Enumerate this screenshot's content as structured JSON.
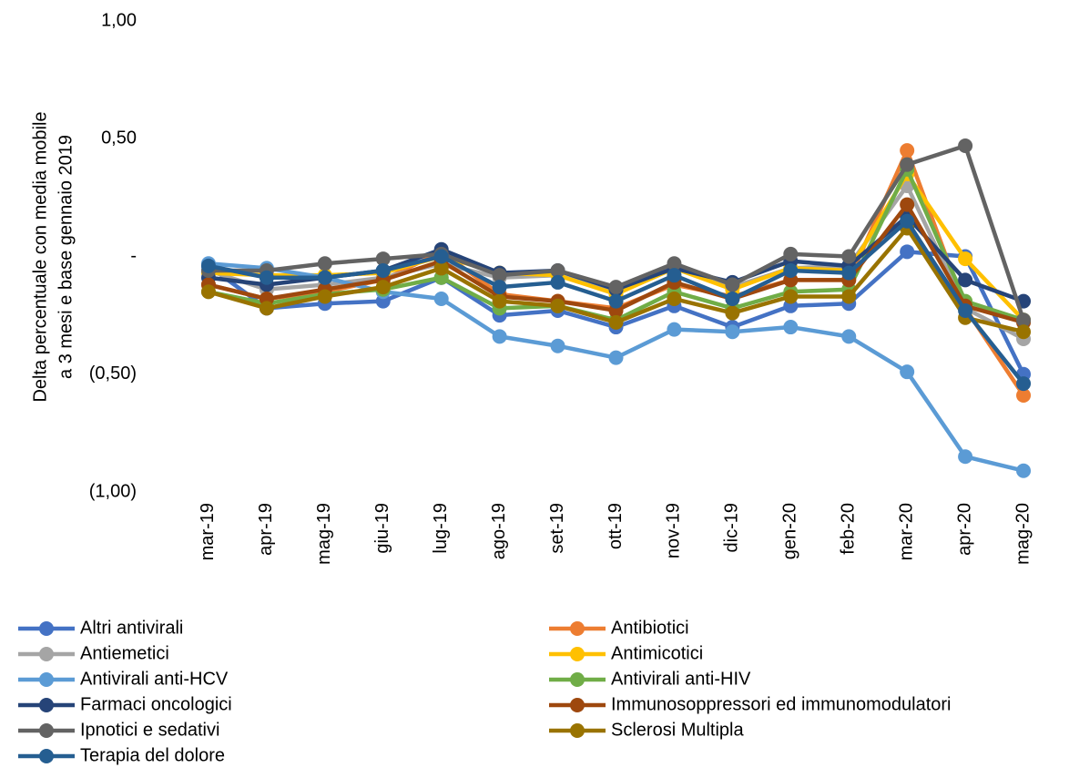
{
  "chart_data": {
    "type": "line",
    "ylabel": [
      "Delta percentuale con media mobile",
      "a 3 mesi e base gennaio 2019"
    ],
    "categories": [
      "mar-19",
      "apr-19",
      "mag-19",
      "giu-19",
      "lug-19",
      "ago-19",
      "set-19",
      "ott-19",
      "nov-19",
      "dic-19",
      "gen-20",
      "feb-20",
      "mar-20",
      "apr-20",
      "mag-20"
    ],
    "ylim": [
      -1,
      1
    ],
    "yticks": [
      {
        "value": 1,
        "label": "1,00"
      },
      {
        "value": 0.5,
        "label": "0,50"
      },
      {
        "value": 0,
        "label": "-"
      },
      {
        "value": -0.5,
        "label": "(0,50)"
      },
      {
        "value": -1,
        "label": "(1,00)"
      }
    ],
    "grid": false,
    "legend": "bottom",
    "series": [
      {
        "name": "Altri antivirali",
        "color": "#4472C4",
        "values": [
          -0.04,
          -0.22,
          -0.2,
          -0.19,
          -0.09,
          -0.25,
          -0.23,
          -0.3,
          -0.21,
          -0.3,
          -0.21,
          -0.2,
          0.02,
          0.0,
          -0.5
        ]
      },
      {
        "name": "Antibiotici",
        "color": "#ED7D31",
        "values": [
          -0.12,
          -0.18,
          -0.15,
          -0.1,
          0.02,
          -0.16,
          -0.19,
          -0.22,
          -0.12,
          -0.17,
          -0.1,
          -0.1,
          0.45,
          -0.22,
          -0.59
        ]
      },
      {
        "name": "Antiemetici",
        "color": "#A5A5A5",
        "values": [
          -0.06,
          -0.14,
          -0.12,
          -0.09,
          -0.03,
          -0.09,
          -0.08,
          -0.15,
          -0.05,
          -0.13,
          -0.05,
          -0.04,
          0.3,
          -0.22,
          -0.35
        ]
      },
      {
        "name": "Antimicotici",
        "color": "#FFC000",
        "values": [
          -0.07,
          -0.08,
          -0.08,
          -0.07,
          0.0,
          -0.07,
          -0.08,
          -0.16,
          -0.05,
          -0.14,
          -0.05,
          -0.06,
          0.35,
          -0.01,
          -0.27
        ]
      },
      {
        "name": "Antivirali anti-HCV",
        "color": "#5B9BD5",
        "values": [
          -0.03,
          -0.05,
          -0.09,
          -0.15,
          -0.18,
          -0.34,
          -0.38,
          -0.43,
          -0.31,
          -0.32,
          -0.3,
          -0.34,
          -0.49,
          -0.85,
          -0.91
        ]
      },
      {
        "name": "Antivirali anti-HIV",
        "color": "#70AD47",
        "values": [
          -0.15,
          -0.2,
          -0.16,
          -0.14,
          -0.09,
          -0.22,
          -0.21,
          -0.27,
          -0.15,
          -0.22,
          -0.15,
          -0.14,
          0.37,
          -0.19,
          -0.27
        ]
      },
      {
        "name": "Farmaci oncologici",
        "color": "#264478",
        "values": [
          -0.09,
          -0.12,
          -0.09,
          -0.06,
          0.03,
          -0.07,
          -0.06,
          -0.14,
          -0.05,
          -0.11,
          -0.02,
          -0.04,
          0.17,
          -0.1,
          -0.19
        ]
      },
      {
        "name": "Immunosoppressori ed immunomodulatori",
        "color": "#9E480E",
        "values": [
          -0.12,
          -0.18,
          -0.14,
          -0.1,
          -0.02,
          -0.17,
          -0.19,
          -0.23,
          -0.11,
          -0.18,
          -0.1,
          -0.1,
          0.22,
          -0.21,
          -0.28
        ]
      },
      {
        "name": "Ipnotici e sedativi",
        "color": "#636363",
        "values": [
          -0.06,
          -0.06,
          -0.03,
          -0.01,
          0.01,
          -0.08,
          -0.06,
          -0.13,
          -0.03,
          -0.12,
          0.01,
          0.0,
          0.39,
          0.47,
          -0.27
        ]
      },
      {
        "name": "Sclerosi Multipla",
        "color": "#997300",
        "values": [
          -0.15,
          -0.22,
          -0.17,
          -0.13,
          -0.05,
          -0.19,
          -0.21,
          -0.28,
          -0.18,
          -0.24,
          -0.17,
          -0.17,
          0.12,
          -0.26,
          -0.32
        ]
      },
      {
        "name": "Terapia del dolore",
        "color": "#255E91",
        "values": [
          -0.04,
          -0.09,
          -0.09,
          -0.06,
          0.0,
          -0.13,
          -0.11,
          -0.19,
          -0.08,
          -0.18,
          -0.06,
          -0.07,
          0.15,
          -0.23,
          -0.54
        ]
      }
    ]
  }
}
